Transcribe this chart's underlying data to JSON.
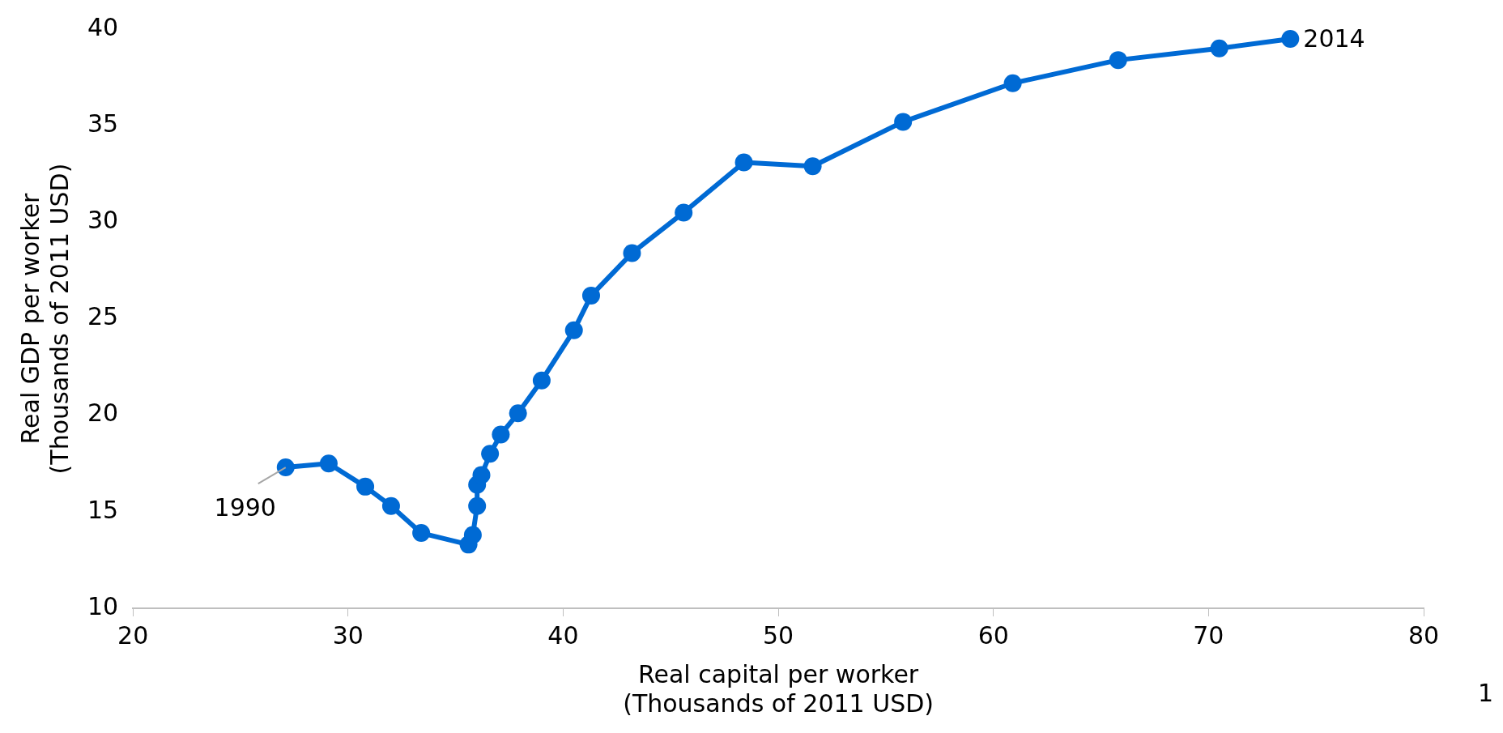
{
  "chart_data": {
    "type": "line",
    "xlabel": "Real capital per worker\n(Thousands of 2011 USD)",
    "ylabel": "Real GDP per worker\n(Thousands of 2011 USD)",
    "xlim": [
      20,
      80
    ],
    "xticks": [
      20,
      30,
      40,
      50,
      60,
      70,
      80
    ],
    "ylim": [
      10,
      40
    ],
    "yticks": [
      10,
      15,
      20,
      25,
      30,
      35,
      40
    ],
    "grid": false,
    "legend": false,
    "marker": "circle",
    "line_style": "solid",
    "series": [
      {
        "color": "#006ad4",
        "x": [
          27.1,
          29.1,
          30.8,
          32.0,
          33.4,
          35.6,
          35.8,
          36.0,
          36.0,
          36.2,
          36.6,
          37.1,
          37.9,
          39.0,
          40.5,
          41.3,
          43.2,
          45.6,
          48.4,
          51.6,
          55.8,
          60.9,
          65.8,
          70.5,
          73.8
        ],
        "values": [
          17.3,
          17.5,
          16.3,
          15.3,
          13.9,
          13.3,
          13.8,
          15.3,
          16.4,
          16.9,
          18.0,
          19.0,
          20.1,
          21.8,
          24.4,
          26.2,
          28.4,
          30.5,
          33.1,
          32.9,
          35.2,
          37.2,
          38.4,
          39.0,
          39.5
        ]
      }
    ],
    "annotations": [
      {
        "text": "1990",
        "x": 27.1,
        "y": 17.3
      },
      {
        "text": "2014",
        "x": 73.8,
        "y": 39.5
      },
      "1"
    ]
  }
}
